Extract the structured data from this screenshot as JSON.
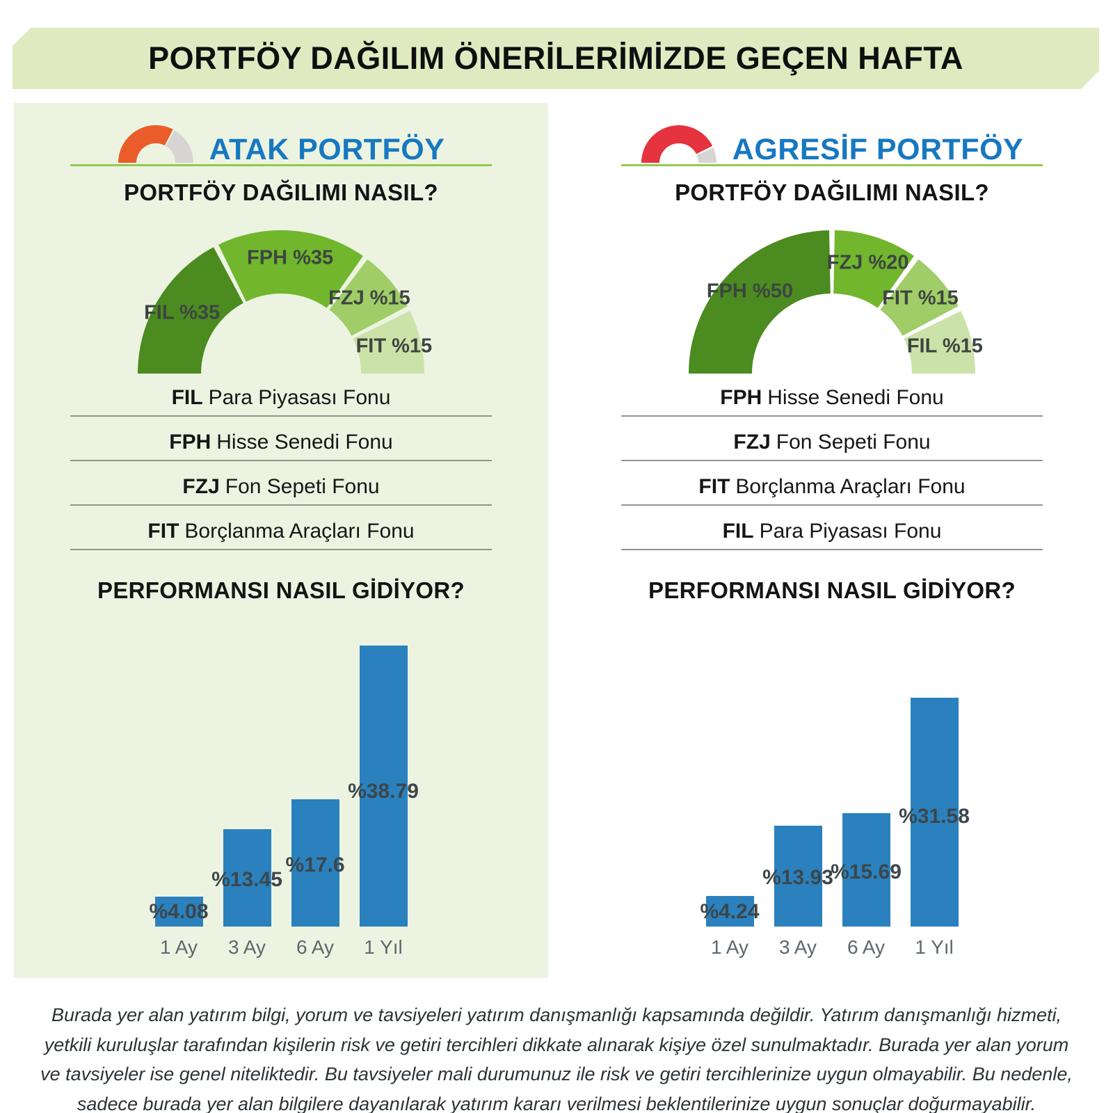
{
  "header": {
    "title": "PORTFÖY DAĞILIM ÖNERİLERİMİZDE GEÇEN HAFTA"
  },
  "panels": [
    {
      "id": "atak",
      "title": "ATAK PORTFÖY",
      "allocation_heading": "PORTFÖY DAĞILIMI NASIL?",
      "performance_heading": "PERFORMANSI NASIL GİDİYOR?",
      "gauge": {
        "color": "#ea5d2a",
        "track_color": "#d6d5d3",
        "fill_ratio": 0.66
      },
      "funds": [
        {
          "code": "FIL",
          "name": "Para Piyasası Fonu"
        },
        {
          "code": "FPH",
          "name": "Hisse Senedi Fonu"
        },
        {
          "code": "FZJ",
          "name": "Fon Sepeti Fonu"
        },
        {
          "code": "FIT",
          "name": "Borçlanma Araçları Fonu"
        }
      ],
      "allocation_chart": "atak-allocation",
      "performance_chart": "atak-performance"
    },
    {
      "id": "agresif",
      "title": "AGRESİF PORTFÖY",
      "allocation_heading": "PORTFÖY DAĞILIMI NASIL?",
      "performance_heading": "PERFORMANSI NASIL GİDİYOR?",
      "gauge": {
        "color": "#e5333f",
        "track_color": "#d6d5d3",
        "fill_ratio": 0.86
      },
      "funds": [
        {
          "code": "FPH",
          "name": "Hisse Senedi Fonu"
        },
        {
          "code": "FZJ",
          "name": "Fon Sepeti Fonu"
        },
        {
          "code": "FIT",
          "name": "Borçlanma Araçları Fonu"
        },
        {
          "code": "FIL",
          "name": "Para Piyasası Fonu"
        }
      ],
      "allocation_chart": "agresif-allocation",
      "performance_chart": "agresif-performance"
    }
  ],
  "chart_data": [
    {
      "id": "atak-allocation",
      "type": "pie",
      "variant": "half-donut",
      "title": "PORTFÖY DAĞILIMI NASIL?",
      "labels": [
        "FIL %35",
        "FPH %35",
        "FZJ %15",
        "FIT %15"
      ],
      "values": [
        35,
        35,
        15,
        15
      ],
      "colors": [
        "#4b8b20",
        "#71b62d",
        "#a0cd67",
        "#cbe3a9"
      ]
    },
    {
      "id": "atak-performance",
      "type": "bar",
      "title": "PERFORMANSI NASIL GİDİYOR?",
      "categories": [
        "1 Ay",
        "3 Ay",
        "6 Ay",
        "1 Yıl"
      ],
      "values": [
        4.08,
        13.45,
        17.6,
        38.79
      ],
      "value_labels": [
        "%4.08",
        "%13.45",
        "%17.6",
        "%38.79"
      ],
      "bar_color": "#2a81bd",
      "ylim": [
        0,
        40
      ],
      "grid": false,
      "legend_position": "none"
    },
    {
      "id": "agresif-allocation",
      "type": "pie",
      "variant": "half-donut",
      "title": "PORTFÖY DAĞILIMI NASIL?",
      "labels": [
        "FPH %50",
        "FZJ %20",
        "FIT %15",
        "FIL %15"
      ],
      "values": [
        50,
        20,
        15,
        15
      ],
      "colors": [
        "#4b8b20",
        "#71b62d",
        "#a0cd67",
        "#cbe3a9"
      ]
    },
    {
      "id": "agresif-performance",
      "type": "bar",
      "title": "PERFORMANSI NASIL GİDİYOR?",
      "categories": [
        "1 Ay",
        "3 Ay",
        "6 Ay",
        "1 Yıl"
      ],
      "values": [
        4.24,
        13.93,
        15.69,
        31.58
      ],
      "value_labels": [
        "%4.24",
        "%13.93",
        "%15.69",
        "%31.58"
      ],
      "bar_color": "#2a81bd",
      "ylim": [
        0,
        40
      ],
      "grid": false,
      "legend_position": "none"
    }
  ],
  "footer": {
    "disclaimer": "Burada yer alan yatırım bilgi, yorum ve tavsiyeleri yatırım danışmanlığı kapsamında değildir. Yatırım danışmanlığı hizmeti, yetkili kuruluşlar tarafından kişilerin risk ve getiri tercihleri dikkate alınarak kişiye özel sunulmaktadır. Burada yer alan yorum ve tavsiyeler ise genel niteliktedir. Bu tavsiyeler mali durumunuz ile risk ve getiri tercihlerinize uygun olmayabilir. Bu nedenle, sadece burada yer alan bilgilere dayanılarak yatırım kararı verilmesi beklentilerinize uygun sonuçlar doğurmayabilir."
  },
  "colors": {
    "banner_bg": "#e0eac1",
    "panel_bg": "#ecf4e1",
    "title_blue": "#1778c1",
    "divider_green": "#93c94e",
    "bar_blue": "#2a81bd",
    "donut_palette": [
      "#4b8b20",
      "#71b62d",
      "#a0cd67",
      "#cbe3a9"
    ],
    "gauge_orange": "#ea5d2a",
    "gauge_red": "#e5333f",
    "gauge_track": "#d6d5d3"
  }
}
